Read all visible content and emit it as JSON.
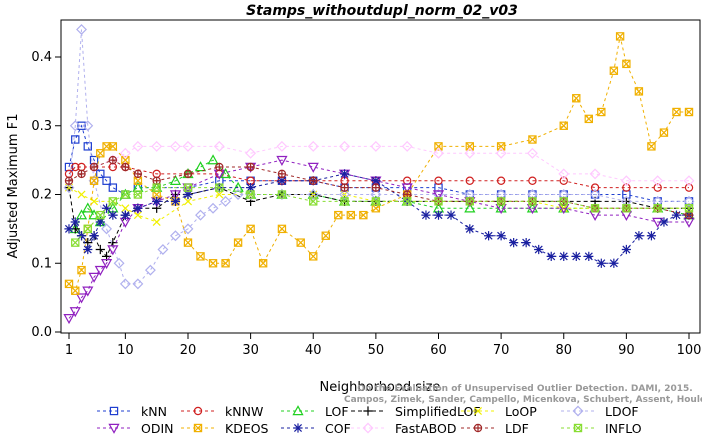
{
  "chart_data": {
    "type": "line",
    "title": "Stamps_withoutdupl_norm_02_v03",
    "xlabel": "Neighborhood size",
    "ylabel": "Adjusted Maximum F1",
    "xlim": [
      1,
      100
    ],
    "ylim": [
      0,
      0.45
    ],
    "xticks": [
      1,
      10,
      20,
      30,
      40,
      50,
      60,
      70,
      80,
      90,
      100
    ],
    "yticks": [
      "0.0",
      "0.1",
      "0.2",
      "0.3",
      "0.4"
    ],
    "grid": false,
    "legend_position": "bottom",
    "watermark": [
      "Campos, Zimek, Sander, Campello, Micenkova, Schubert, Assent, Houle",
      "On the Evaluation of Unsupervised Outlier Detection. DAMI, 2015."
    ],
    "series": [
      {
        "name": "kNN",
        "color": "#1f3fd0",
        "marker": "square",
        "dash": "3,3",
        "k": [
          1,
          2,
          3,
          4,
          5,
          6,
          7,
          8,
          10,
          12,
          15,
          20,
          25,
          30,
          35,
          40,
          45,
          50,
          55,
          60,
          65,
          70,
          75,
          80,
          85,
          90,
          95,
          100
        ],
        "y": [
          0.24,
          0.28,
          0.3,
          0.27,
          0.25,
          0.23,
          0.22,
          0.21,
          0.2,
          0.21,
          0.21,
          0.21,
          0.22,
          0.22,
          0.22,
          0.22,
          0.21,
          0.21,
          0.21,
          0.21,
          0.2,
          0.2,
          0.2,
          0.2,
          0.2,
          0.2,
          0.19,
          0.19
        ]
      },
      {
        "name": "kNNW",
        "color": "#d02020",
        "marker": "circle",
        "dash": "3,3",
        "k": [
          1,
          2,
          3,
          5,
          8,
          10,
          15,
          20,
          25,
          30,
          35,
          40,
          45,
          50,
          55,
          60,
          65,
          70,
          75,
          80,
          85,
          90,
          95,
          100
        ],
        "y": [
          0.23,
          0.24,
          0.24,
          0.24,
          0.24,
          0.24,
          0.23,
          0.23,
          0.23,
          0.22,
          0.22,
          0.22,
          0.22,
          0.22,
          0.22,
          0.22,
          0.22,
          0.22,
          0.22,
          0.22,
          0.21,
          0.21,
          0.21,
          0.21
        ]
      },
      {
        "name": "LOF",
        "color": "#20d020",
        "marker": "triangle",
        "dash": "3,3",
        "k": [
          2,
          3,
          4,
          5,
          6,
          8,
          10,
          12,
          15,
          18,
          20,
          22,
          24,
          26,
          28,
          30,
          35,
          40,
          45,
          50,
          55,
          60,
          65,
          70,
          75,
          80,
          85,
          90,
          95,
          100
        ],
        "y": [
          0.15,
          0.17,
          0.18,
          0.17,
          0.16,
          0.18,
          0.2,
          0.21,
          0.21,
          0.22,
          0.23,
          0.24,
          0.25,
          0.23,
          0.21,
          0.2,
          0.2,
          0.2,
          0.19,
          0.19,
          0.19,
          0.18,
          0.18,
          0.18,
          0.18,
          0.18,
          0.18,
          0.18,
          0.18,
          0.17
        ]
      },
      {
        "name": "SimplifiedLOF",
        "color": "#000000",
        "marker": "plus",
        "dash": "4,3",
        "k": [
          1,
          2,
          3,
          4,
          5,
          6,
          7,
          8,
          10,
          12,
          15,
          18,
          20,
          25,
          30,
          35,
          40,
          45,
          50,
          55,
          60,
          65,
          70,
          75,
          80,
          85,
          90,
          95,
          100
        ],
        "y": [
          0.21,
          0.15,
          0.14,
          0.13,
          0.14,
          0.12,
          0.11,
          0.13,
          0.17,
          0.18,
          0.18,
          0.2,
          0.2,
          0.21,
          0.19,
          0.2,
          0.2,
          0.19,
          0.19,
          0.19,
          0.19,
          0.19,
          0.19,
          0.19,
          0.19,
          0.19,
          0.19,
          0.18,
          0.18
        ]
      },
      {
        "name": "LoOP",
        "color": "#f0f000",
        "marker": "x",
        "dash": "3,3",
        "k": [
          1,
          3,
          5,
          8,
          10,
          12,
          15,
          20,
          25,
          30,
          35,
          40,
          45,
          50,
          55,
          60,
          65,
          70,
          75,
          80,
          85,
          90,
          95,
          100
        ],
        "y": [
          0.21,
          0.2,
          0.19,
          0.19,
          0.18,
          0.17,
          0.16,
          0.19,
          0.2,
          0.2,
          0.2,
          0.2,
          0.2,
          0.19,
          0.19,
          0.19,
          0.19,
          0.19,
          0.19,
          0.18,
          0.18,
          0.18,
          0.18,
          0.18
        ]
      },
      {
        "name": "LDOF",
        "color": "#b0b0ee",
        "marker": "diamond",
        "dash": "3,3",
        "k": [
          1,
          2,
          3,
          4,
          5,
          7,
          9,
          10,
          12,
          14,
          16,
          18,
          20,
          22,
          24,
          26,
          28,
          30,
          35,
          40,
          45,
          50,
          55,
          60,
          65,
          70,
          75,
          80,
          85,
          90,
          95,
          100
        ],
        "y": [
          0.21,
          0.3,
          0.44,
          0.3,
          0.22,
          0.15,
          0.1,
          0.07,
          0.07,
          0.09,
          0.12,
          0.14,
          0.15,
          0.17,
          0.18,
          0.19,
          0.2,
          0.2,
          0.2,
          0.2,
          0.2,
          0.2,
          0.2,
          0.2,
          0.2,
          0.2,
          0.2,
          0.2,
          0.2,
          0.19,
          0.19,
          0.19
        ]
      },
      {
        "name": "ODIN",
        "color": "#9020c0",
        "marker": "triangle-down",
        "dash": "3,3",
        "k": [
          1,
          2,
          3,
          4,
          5,
          6,
          7,
          8,
          10,
          12,
          15,
          18,
          20,
          25,
          30,
          35,
          40,
          45,
          50,
          55,
          60,
          65,
          70,
          75,
          80,
          85,
          90,
          95,
          100
        ],
        "y": [
          0.02,
          0.03,
          0.05,
          0.06,
          0.08,
          0.09,
          0.1,
          0.12,
          0.16,
          0.18,
          0.19,
          0.2,
          0.21,
          0.23,
          0.24,
          0.25,
          0.24,
          0.23,
          0.22,
          0.21,
          0.2,
          0.19,
          0.18,
          0.18,
          0.18,
          0.17,
          0.17,
          0.16,
          0.16
        ]
      },
      {
        "name": "KDEOS",
        "color": "#f0b000",
        "marker": "square-x",
        "dash": "3,3",
        "k": [
          1,
          2,
          3,
          4,
          5,
          6,
          7,
          8,
          10,
          12,
          15,
          18,
          20,
          22,
          24,
          26,
          28,
          30,
          32,
          35,
          38,
          40,
          42,
          44,
          46,
          48,
          50,
          55,
          60,
          65,
          70,
          75,
          80,
          82,
          84,
          86,
          88,
          89,
          90,
          92,
          94,
          96,
          98,
          100
        ],
        "y": [
          0.07,
          0.06,
          0.09,
          0.15,
          0.22,
          0.26,
          0.27,
          0.27,
          0.25,
          0.22,
          0.2,
          0.19,
          0.13,
          0.11,
          0.1,
          0.1,
          0.13,
          0.15,
          0.1,
          0.15,
          0.13,
          0.11,
          0.14,
          0.17,
          0.17,
          0.17,
          0.18,
          0.2,
          0.27,
          0.27,
          0.27,
          0.28,
          0.3,
          0.34,
          0.31,
          0.32,
          0.38,
          0.43,
          0.39,
          0.35,
          0.27,
          0.29,
          0.32,
          0.32
        ]
      },
      {
        "name": "COF",
        "color": "#1a20a0",
        "marker": "star",
        "dash": "3,3",
        "k": [
          1,
          2,
          3,
          4,
          5,
          6,
          7,
          8,
          10,
          12,
          15,
          18,
          20,
          25,
          30,
          35,
          40,
          45,
          50,
          55,
          58,
          60,
          62,
          65,
          68,
          70,
          72,
          74,
          76,
          78,
          80,
          82,
          84,
          86,
          88,
          90,
          92,
          94,
          96,
          98,
          100
        ],
        "y": [
          0.15,
          0.16,
          0.14,
          0.12,
          0.14,
          0.16,
          0.18,
          0.17,
          0.17,
          0.18,
          0.19,
          0.19,
          0.2,
          0.21,
          0.21,
          0.22,
          0.22,
          0.23,
          0.22,
          0.19,
          0.17,
          0.17,
          0.17,
          0.15,
          0.14,
          0.14,
          0.13,
          0.13,
          0.12,
          0.11,
          0.11,
          0.11,
          0.11,
          0.1,
          0.1,
          0.12,
          0.14,
          0.14,
          0.16,
          0.17,
          0.17
        ]
      },
      {
        "name": "FastABOD",
        "color": "#ffc8ff",
        "marker": "diamond",
        "dash": "3,3",
        "k": [
          5,
          8,
          10,
          12,
          15,
          18,
          20,
          25,
          30,
          35,
          40,
          45,
          50,
          55,
          60,
          65,
          70,
          75,
          80,
          85,
          90,
          95,
          100
        ],
        "y": [
          0.24,
          0.25,
          0.26,
          0.27,
          0.27,
          0.27,
          0.27,
          0.27,
          0.26,
          0.27,
          0.27,
          0.27,
          0.27,
          0.27,
          0.26,
          0.26,
          0.26,
          0.26,
          0.23,
          0.23,
          0.22,
          0.22,
          0.22
        ]
      },
      {
        "name": "LDF",
        "color": "#a02828",
        "marker": "circle-plus",
        "dash": "3,3",
        "k": [
          1,
          3,
          5,
          8,
          10,
          12,
          15,
          20,
          25,
          30,
          35,
          40,
          45,
          50,
          55,
          60,
          65,
          70,
          75,
          80,
          85,
          90,
          95,
          100
        ],
        "y": [
          0.22,
          0.23,
          0.24,
          0.25,
          0.24,
          0.23,
          0.22,
          0.23,
          0.24,
          0.24,
          0.23,
          0.22,
          0.21,
          0.21,
          0.2,
          0.19,
          0.19,
          0.19,
          0.19,
          0.19,
          0.18,
          0.18,
          0.18,
          0.17
        ]
      },
      {
        "name": "INFLO",
        "color": "#88dd33",
        "marker": "square-x",
        "dash": "3,3",
        "k": [
          2,
          4,
          6,
          8,
          10,
          12,
          15,
          20,
          25,
          30,
          35,
          40,
          45,
          50,
          55,
          60,
          65,
          70,
          75,
          80,
          85,
          90,
          95,
          100
        ],
        "y": [
          0.13,
          0.15,
          0.17,
          0.19,
          0.2,
          0.2,
          0.21,
          0.21,
          0.21,
          0.2,
          0.2,
          0.19,
          0.19,
          0.19,
          0.19,
          0.19,
          0.19,
          0.19,
          0.19,
          0.19,
          0.18,
          0.18,
          0.18,
          0.18
        ]
      }
    ]
  }
}
